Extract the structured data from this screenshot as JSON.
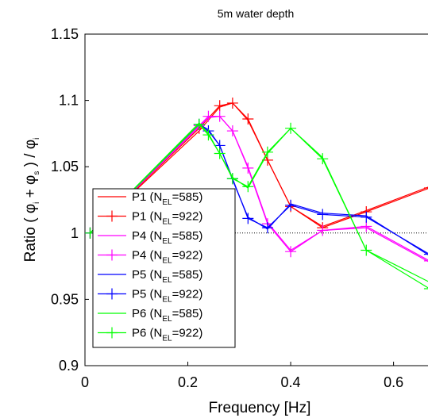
{
  "chart_data": {
    "type": "line",
    "title": "5m water depth",
    "xlabel": "Frequency [Hz]",
    "ylabel": "Ratio ( φ_i + φ_s ) / φ_i",
    "xlim": [
      0,
      0.67
    ],
    "ylim": [
      0.9,
      1.15
    ],
    "xticks": [
      "0",
      "0.2",
      "0.4",
      "0.6"
    ],
    "yticks": [
      "0.9",
      "0.95",
      "1",
      "1.05",
      "1.1",
      "1.15"
    ],
    "reference_line": {
      "y": 1,
      "style": "dotted"
    },
    "legend_position": "lower-left",
    "series": [
      {
        "name": "P1 (N_EL=585)",
        "name_main": "P1 (N",
        "name_sub": "EL",
        "name_tail": "=585)",
        "color": "#ff0000",
        "marker": "none",
        "x": [
          0.01,
          0.222,
          0.262,
          0.287,
          0.317,
          0.355,
          0.4,
          0.462,
          0.547,
          0.67
        ],
        "y": [
          1.0,
          1.077,
          1.095,
          1.098,
          1.085,
          1.055,
          1.02,
          1.005,
          1.017,
          1.035
        ]
      },
      {
        "name": "P1 (N_EL=922)",
        "name_main": "P1 (N",
        "name_sub": "EL",
        "name_tail": "=922)",
        "color": "#ff0000",
        "marker": "plus",
        "x": [
          0.01,
          0.222,
          0.262,
          0.287,
          0.317,
          0.355,
          0.4,
          0.462,
          0.547,
          0.67
        ],
        "y": [
          1.0,
          1.079,
          1.096,
          1.098,
          1.086,
          1.055,
          1.02,
          1.004,
          1.016,
          1.034
        ]
      },
      {
        "name": "P4 (N_EL=585)",
        "name_main": "P4 (N",
        "name_sub": "EL",
        "name_tail": "=585)",
        "color": "#ff00ff",
        "marker": "none",
        "x": [
          0.01,
          0.222,
          0.24,
          0.262,
          0.287,
          0.317,
          0.355,
          0.4,
          0.462,
          0.547,
          0.67
        ],
        "y": [
          1.0,
          1.08,
          1.087,
          1.088,
          1.077,
          1.05,
          1.008,
          0.987,
          1.002,
          1.004,
          0.978
        ]
      },
      {
        "name": "P4 (N_EL=922)",
        "name_main": "P4 (N",
        "name_sub": "EL",
        "name_tail": "=922)",
        "color": "#ff00ff",
        "marker": "plus",
        "x": [
          0.01,
          0.222,
          0.24,
          0.262,
          0.287,
          0.317,
          0.355,
          0.4,
          0.462,
          0.547,
          0.67
        ],
        "y": [
          1.0,
          1.081,
          1.088,
          1.088,
          1.077,
          1.049,
          1.007,
          0.986,
          1.002,
          1.005,
          0.979
        ]
      },
      {
        "name": "P5 (N_EL=585)",
        "name_main": "P5 (N",
        "name_sub": "EL",
        "name_tail": "=585)",
        "color": "#0000ff",
        "marker": "none",
        "x": [
          0.01,
          0.222,
          0.24,
          0.262,
          0.287,
          0.317,
          0.355,
          0.4,
          0.462,
          0.547,
          0.67
        ],
        "y": [
          1.0,
          1.082,
          1.078,
          1.066,
          1.04,
          1.012,
          1.003,
          1.022,
          1.015,
          1.013,
          0.983
        ]
      },
      {
        "name": "P5 (N_EL=922)",
        "name_main": "P5 (N",
        "name_sub": "EL",
        "name_tail": "=922)",
        "color": "#0000ff",
        "marker": "plus",
        "x": [
          0.01,
          0.222,
          0.24,
          0.262,
          0.287,
          0.317,
          0.355,
          0.4,
          0.462,
          0.547,
          0.67
        ],
        "y": [
          1.0,
          1.082,
          1.077,
          1.066,
          1.041,
          1.011,
          1.004,
          1.021,
          1.014,
          1.012,
          0.984
        ]
      },
      {
        "name": "P6 (N_EL=585)",
        "name_main": "P6 (N",
        "name_sub": "EL",
        "name_tail": "=585)",
        "color": "#00ff00",
        "marker": "none",
        "x": [
          0.01,
          0.222,
          0.24,
          0.262,
          0.287,
          0.317,
          0.355,
          0.4,
          0.462,
          0.547,
          0.67
        ],
        "y": [
          1.0,
          1.083,
          1.075,
          1.06,
          1.042,
          1.034,
          1.06,
          1.079,
          1.057,
          0.987,
          0.963
        ]
      },
      {
        "name": "P6 (N_EL=922)",
        "name_main": "P6 (N",
        "name_sub": "EL",
        "name_tail": "=922)",
        "color": "#00ff00",
        "marker": "plus",
        "x": [
          0.01,
          0.222,
          0.24,
          0.262,
          0.287,
          0.317,
          0.355,
          0.4,
          0.462,
          0.547,
          0.67
        ],
        "y": [
          1.0,
          1.082,
          1.074,
          1.06,
          1.041,
          1.035,
          1.061,
          1.079,
          1.056,
          0.987,
          0.958
        ]
      }
    ]
  }
}
